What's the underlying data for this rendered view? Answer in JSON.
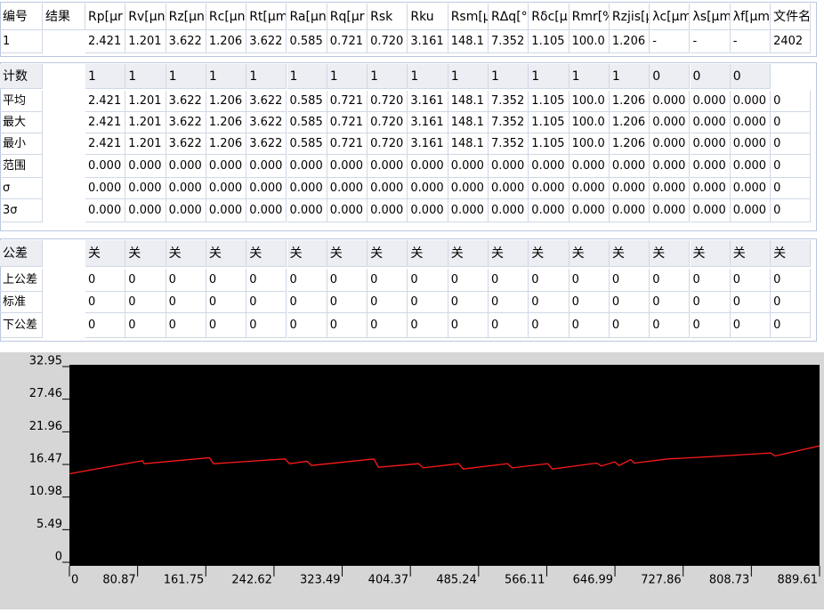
{
  "results_table": {
    "id_header": "编号",
    "result_header": "结果",
    "headers": [
      "Rp[μr",
      "Rv[μn",
      "Rz[μn",
      "Rc[μn",
      "Rt[μm",
      "Ra[μn",
      "Rq[μr",
      "Rsk",
      "Rku",
      "Rsm[μ",
      "RΔq[°",
      "Rδc[μ",
      "Rmr[%",
      "Rzjis[μ",
      "λc[μm",
      "λs[μm",
      "λf[μm",
      "文件名"
    ],
    "rows": [
      {
        "id": "1",
        "values": [
          "2.421",
          "1.201",
          "3.622",
          "1.206",
          "3.622",
          "0.585",
          "0.721",
          "0.720",
          "3.161",
          "148.1",
          "7.352",
          "1.105",
          "100.0",
          "1.206",
          "-",
          "-",
          "-",
          "2402"
        ]
      }
    ]
  },
  "stats_table": {
    "rows": [
      {
        "label": "计数",
        "values": [
          "1",
          "1",
          "1",
          "1",
          "1",
          "1",
          "1",
          "1",
          "1",
          "1",
          "1",
          "1",
          "1",
          "1",
          "0",
          "0",
          "0"
        ]
      },
      {
        "label": "平均",
        "values": [
          "2.421",
          "1.201",
          "3.622",
          "1.206",
          "3.622",
          "0.585",
          "0.721",
          "0.720",
          "3.161",
          "148.1",
          "7.352",
          "1.105",
          "100.0",
          "1.206",
          "0.000",
          "0.000",
          "0.000",
          "0"
        ]
      },
      {
        "label": "最大",
        "values": [
          "2.421",
          "1.201",
          "3.622",
          "1.206",
          "3.622",
          "0.585",
          "0.721",
          "0.720",
          "3.161",
          "148.1",
          "7.352",
          "1.105",
          "100.0",
          "1.206",
          "0.000",
          "0.000",
          "0.000",
          "0"
        ]
      },
      {
        "label": "最小",
        "values": [
          "2.421",
          "1.201",
          "3.622",
          "1.206",
          "3.622",
          "0.585",
          "0.721",
          "0.720",
          "3.161",
          "148.1",
          "7.352",
          "1.105",
          "100.0",
          "1.206",
          "0.000",
          "0.000",
          "0.000",
          "0"
        ]
      },
      {
        "label": "范围",
        "values": [
          "0.000",
          "0.000",
          "0.000",
          "0.000",
          "0.000",
          "0.000",
          "0.000",
          "0.000",
          "0.000",
          "0.000",
          "0.000",
          "0.000",
          "0.000",
          "0.000",
          "0.000",
          "0.000",
          "0.000",
          "0"
        ]
      },
      {
        "label": "σ",
        "values": [
          "0.000",
          "0.000",
          "0.000",
          "0.000",
          "0.000",
          "0.000",
          "0.000",
          "0.000",
          "0.000",
          "0.000",
          "0.000",
          "0.000",
          "0.000",
          "0.000",
          "0.000",
          "0.000",
          "0.000",
          "0"
        ]
      },
      {
        "label": "3σ",
        "values": [
          "0.000",
          "0.000",
          "0.000",
          "0.000",
          "0.000",
          "0.000",
          "0.000",
          "0.000",
          "0.000",
          "0.000",
          "0.000",
          "0.000",
          "0.000",
          "0.000",
          "0.000",
          "0.000",
          "0.000",
          "0"
        ]
      }
    ]
  },
  "tolerance_table": {
    "rows": [
      {
        "label": "公差",
        "values": [
          "关",
          "关",
          "关",
          "关",
          "关",
          "关",
          "关",
          "关",
          "关",
          "关",
          "关",
          "关",
          "关",
          "关",
          "关",
          "关",
          "关",
          "关"
        ]
      },
      {
        "label": "上公差",
        "values": [
          "0",
          "0",
          "0",
          "0",
          "0",
          "0",
          "0",
          "0",
          "0",
          "0",
          "0",
          "0",
          "0",
          "0",
          "0",
          "0",
          "0",
          "0"
        ]
      },
      {
        "label": "标准",
        "values": [
          "0",
          "0",
          "0",
          "0",
          "0",
          "0",
          "0",
          "0",
          "0",
          "0",
          "0",
          "0",
          "0",
          "0",
          "0",
          "0",
          "0",
          "0"
        ]
      },
      {
        "label": "下公差",
        "values": [
          "0",
          "0",
          "0",
          "0",
          "0",
          "0",
          "0",
          "0",
          "0",
          "0",
          "0",
          "0",
          "0",
          "0",
          "0",
          "0",
          "0",
          "0"
        ]
      }
    ]
  },
  "chart_data": {
    "type": "line",
    "x": [
      0,
      86.6,
      88.7,
      165.9,
      171,
      255.7,
      261,
      282,
      287,
      361,
      366.6,
      414,
      419.5,
      461.7,
      467,
      519.8,
      525,
      567.4,
      572.7,
      625.5,
      630.8,
      646.6,
      651.9,
      665.7,
      669.9,
      710,
      762.9,
      831.6,
      836.8,
      889.61
    ],
    "series": [
      {
        "color": "#ff1a1a",
        "values": [
          14.9,
          17.1,
          16.6,
          17.6,
          16.6,
          17.4,
          16.6,
          17.0,
          16.3,
          17.4,
          16.0,
          16.6,
          15.9,
          16.6,
          15.7,
          16.6,
          15.9,
          16.6,
          15.7,
          16.7,
          16.2,
          16.9,
          16.3,
          17.3,
          16.7,
          17.4,
          17.8,
          18.4,
          17.9,
          19.6
        ]
      }
    ],
    "xlim": [
      0,
      889.61
    ],
    "xticks": [
      0,
      80.87,
      161.75,
      242.62,
      323.49,
      404.37,
      485.24,
      566.11,
      646.99,
      727.86,
      808.73,
      889.61
    ],
    "ylim": [
      0,
      32.95
    ],
    "yticks": [
      0,
      5.49,
      10.98,
      16.47,
      21.96,
      27.46,
      32.95
    ],
    "background": "#000000"
  }
}
